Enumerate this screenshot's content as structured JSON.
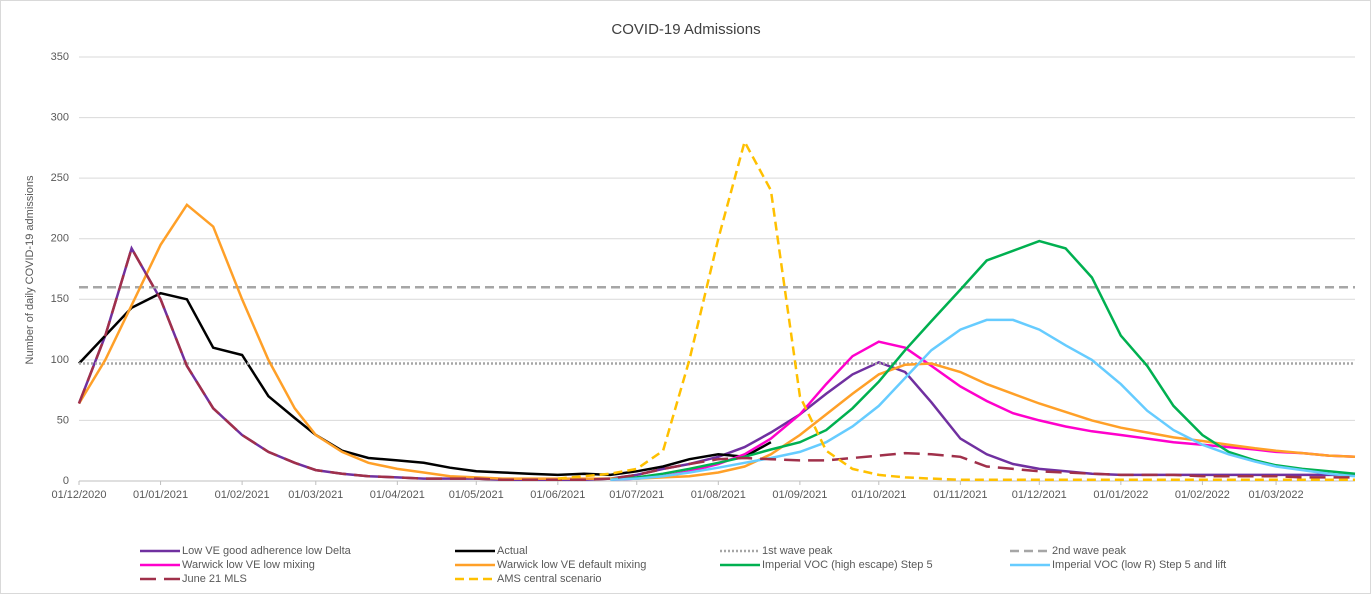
{
  "chart_data": {
    "type": "line",
    "title": "COVID-19 Admissions",
    "y_label": "Number of daily COVID-19 admissions",
    "xlim": [
      "01/12/2020",
      "31/03/2022"
    ],
    "xticks": [
      "01/12/2020",
      "01/01/2021",
      "01/02/2021",
      "01/03/2021",
      "01/04/2021",
      "01/05/2021",
      "01/06/2021",
      "01/07/2021",
      "01/08/2021",
      "01/09/2021",
      "01/10/2021",
      "01/11/2021",
      "01/12/2021",
      "01/01/2022",
      "01/02/2022",
      "01/03/2022"
    ],
    "ylim": [
      0,
      350
    ],
    "yticks": [
      0,
      50,
      100,
      150,
      200,
      250,
      300,
      350
    ],
    "grid": true,
    "legend": "bottom",
    "x": [
      "01/12/2020",
      "11/12/2020",
      "21/12/2020",
      "01/01/2021",
      "11/01/2021",
      "21/01/2021",
      "01/02/2021",
      "11/02/2021",
      "21/02/2021",
      "01/03/2021",
      "11/03/2021",
      "21/03/2021",
      "01/04/2021",
      "11/04/2021",
      "21/04/2021",
      "01/05/2021",
      "11/05/2021",
      "21/05/2021",
      "01/06/2021",
      "11/06/2021",
      "21/06/2021",
      "01/07/2021",
      "11/07/2021",
      "21/07/2021",
      "01/08/2021",
      "11/08/2021",
      "21/08/2021",
      "01/09/2021",
      "11/09/2021",
      "21/09/2021",
      "01/10/2021",
      "11/10/2021",
      "21/10/2021",
      "01/11/2021",
      "11/11/2021",
      "21/11/2021",
      "01/12/2021",
      "11/12/2021",
      "21/12/2021",
      "01/01/2022",
      "11/01/2022",
      "21/01/2022",
      "01/02/2022",
      "11/02/2022",
      "21/02/2022",
      "01/03/2022",
      "11/03/2022",
      "21/03/2022",
      "31/03/2022"
    ],
    "series": [
      {
        "name": "Low VE good adherence low Delta",
        "color": "#7030a0",
        "style": "solid",
        "values": [
          64,
          120,
          192,
          150,
          95,
          60,
          38,
          24,
          15,
          9,
          6,
          4,
          3,
          2,
          2,
          2,
          1,
          1,
          1,
          1,
          2,
          5,
          10,
          14,
          20,
          28,
          40,
          55,
          72,
          88,
          98,
          90,
          65,
          35,
          22,
          14,
          10,
          8,
          6,
          5,
          5,
          5,
          5,
          5,
          5,
          5,
          5,
          5,
          5
        ]
      },
      {
        "name": "Actual",
        "color": "#000000",
        "style": "solid",
        "values": [
          97,
          120,
          143,
          155,
          150,
          110,
          104,
          70,
          52,
          38,
          25,
          19,
          17,
          15,
          11,
          8,
          7,
          6,
          5,
          6,
          5,
          8,
          12,
          18,
          22,
          20,
          32,
          null,
          null,
          null,
          null,
          null,
          null,
          null,
          null,
          null,
          null,
          null,
          null,
          null,
          null,
          null,
          null,
          null,
          null,
          null,
          null,
          null,
          null
        ]
      },
      {
        "name": "1st wave peak",
        "color": "#a6a6a6",
        "style": "dotted",
        "x": [
          "01/12/2020",
          "31/03/2022"
        ],
        "values": [
          97,
          97
        ]
      },
      {
        "name": "2nd wave peak",
        "color": "#a6a6a6",
        "style": "dashed",
        "x": [
          "01/12/2020",
          "31/03/2022"
        ],
        "values": [
          160,
          160
        ]
      },
      {
        "name": "Warwick low VE low mixing",
        "color": "#ff00cc",
        "style": "solid",
        "values": [
          null,
          null,
          null,
          null,
          null,
          null,
          null,
          null,
          null,
          null,
          null,
          null,
          null,
          null,
          null,
          null,
          null,
          null,
          null,
          null,
          1,
          2,
          4,
          8,
          14,
          22,
          35,
          55,
          80,
          103,
          115,
          110,
          95,
          78,
          66,
          56,
          50,
          45,
          41,
          38,
          35,
          32,
          30,
          28,
          26,
          24,
          23,
          21,
          20
        ]
      },
      {
        "name": "Warwick low VE default mixing",
        "color": "#ffa028",
        "style": "solid",
        "values": [
          64,
          100,
          145,
          195,
          228,
          210,
          150,
          100,
          60,
          38,
          24,
          15,
          10,
          7,
          4,
          3,
          2,
          2,
          2,
          2,
          2,
          2,
          3,
          4,
          7,
          12,
          22,
          38,
          55,
          72,
          88,
          96,
          97,
          90,
          80,
          72,
          64,
          57,
          50,
          44,
          40,
          36,
          33,
          30,
          27,
          25,
          23,
          21,
          20
        ]
      },
      {
        "name": "Imperial VOC (high escape) Step 5",
        "color": "#00b050",
        "style": "solid",
        "values": [
          null,
          null,
          null,
          null,
          null,
          null,
          null,
          null,
          null,
          null,
          null,
          null,
          null,
          null,
          null,
          null,
          null,
          null,
          null,
          null,
          1,
          3,
          6,
          10,
          15,
          20,
          26,
          32,
          42,
          60,
          82,
          108,
          132,
          158,
          182,
          190,
          198,
          192,
          168,
          120,
          95,
          62,
          38,
          24,
          17,
          13,
          10,
          8,
          6
        ]
      },
      {
        "name": "Imperial VOC (low R) Step 5 and lift",
        "color": "#66ccff",
        "style": "solid",
        "values": [
          null,
          null,
          null,
          null,
          null,
          null,
          null,
          null,
          null,
          null,
          null,
          null,
          null,
          null,
          null,
          null,
          null,
          null,
          null,
          null,
          1,
          2,
          4,
          7,
          11,
          15,
          19,
          24,
          32,
          45,
          62,
          85,
          108,
          125,
          133,
          133,
          125,
          112,
          100,
          80,
          58,
          42,
          30,
          22,
          16,
          12,
          9,
          6,
          4
        ]
      },
      {
        "name": "June 21 MLS",
        "color": "#a0304a",
        "style": "longdash",
        "values": [
          64,
          120,
          192,
          150,
          95,
          60,
          38,
          24,
          15,
          9,
          6,
          4,
          3,
          2,
          2,
          2,
          1,
          1,
          1,
          1,
          2,
          5,
          10,
          14,
          18,
          19,
          18,
          17,
          17,
          19,
          21,
          23,
          22,
          20,
          12,
          10,
          8,
          7,
          6,
          5,
          5,
          5,
          4,
          4,
          4,
          4,
          3,
          3,
          3
        ]
      },
      {
        "name": "AMS central scenario",
        "color": "#ffc000",
        "style": "dashed",
        "values": [
          null,
          null,
          null,
          null,
          null,
          null,
          null,
          null,
          null,
          null,
          null,
          null,
          null,
          null,
          null,
          null,
          null,
          null,
          2,
          4,
          6,
          10,
          25,
          100,
          200,
          280,
          240,
          70,
          25,
          10,
          5,
          3,
          2,
          1,
          1,
          1,
          1,
          1,
          1,
          1,
          1,
          1,
          1,
          1,
          1,
          1,
          1,
          1,
          1
        ]
      }
    ]
  }
}
